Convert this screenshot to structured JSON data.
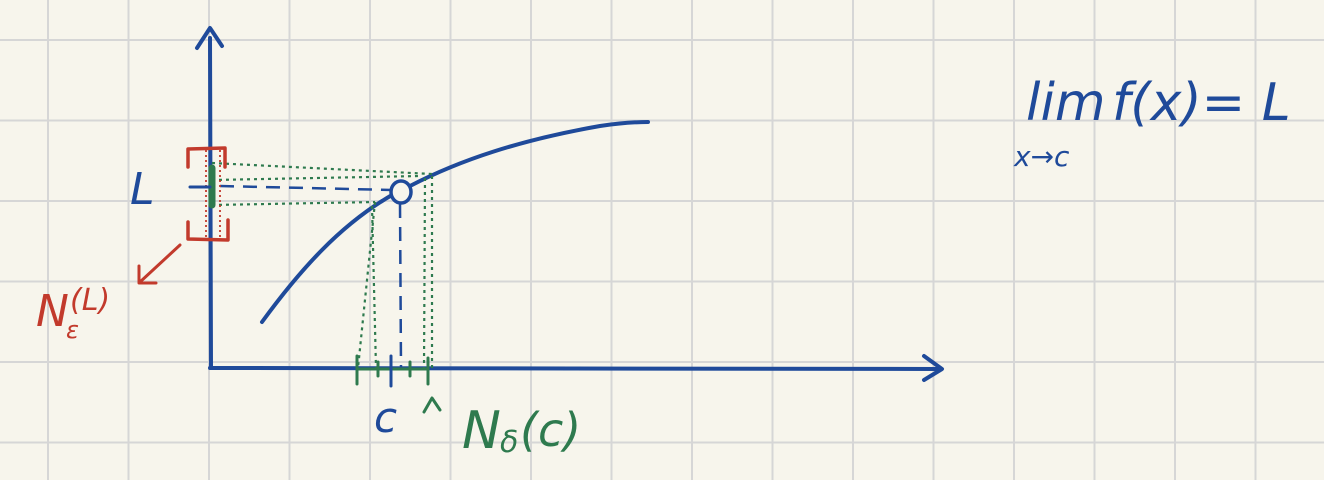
{
  "colors": {
    "paper": "#f7f5ec",
    "grid": "#d6d6d6",
    "curve": "#1f4a9a",
    "delta": "#2e7a4e",
    "epsilon": "#c23a2c"
  },
  "labels": {
    "L": "L",
    "c": "c",
    "epsilon_neighborhood_N": "N",
    "epsilon_neighborhood_sub": "ε",
    "epsilon_neighborhood_arg": "(L)",
    "delta_neighborhood_N": "N",
    "delta_neighborhood_sub": "δ",
    "delta_neighborhood_arg": "(c)",
    "limit_lim": "lim",
    "limit_sub": "x→c",
    "limit_expr": "f(x)= L"
  }
}
